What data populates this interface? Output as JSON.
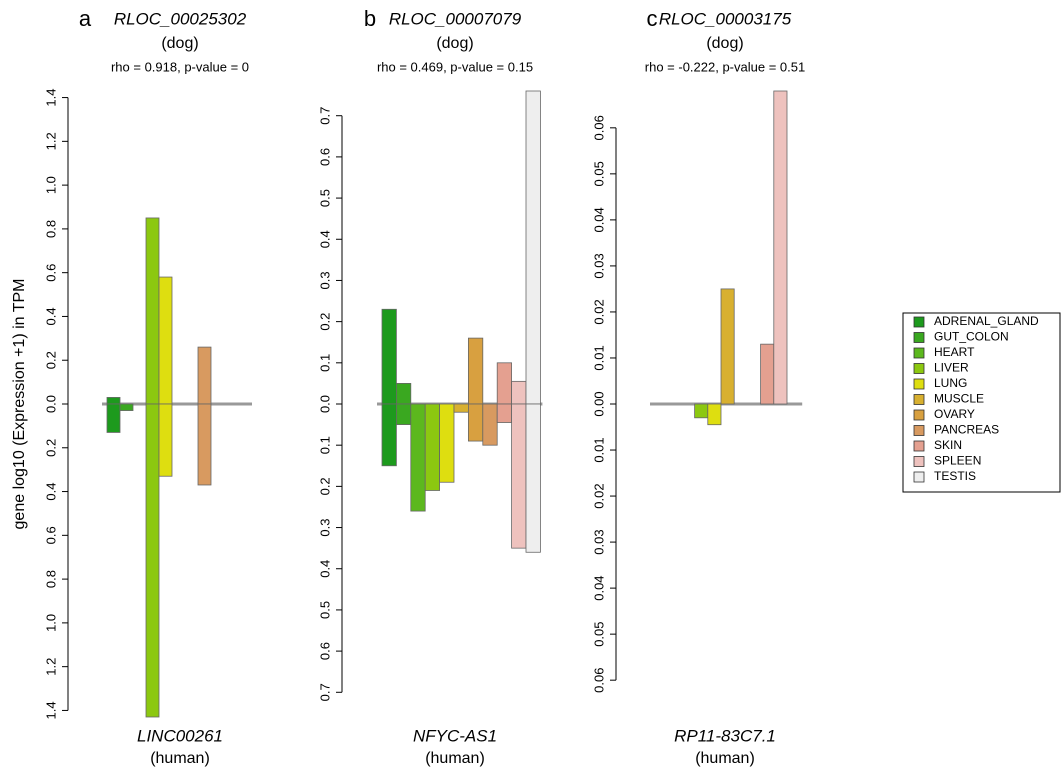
{
  "chart_data": [
    {
      "type": "bar",
      "panel": "a",
      "title": "RLOC_00025302",
      "top_label": "(dog)",
      "subtitle": "rho = 0.918, p-value = 0",
      "bottom_title": "LINC00261",
      "bottom_label": "(human)",
      "ylabel": "gene log10 (Expression +1) in TPM",
      "categories": [
        "ADRENAL_GLAND",
        "GUT_COLON",
        "HEART",
        "LIVER",
        "LUNG",
        "MUSCLE",
        "OVARY",
        "PANCREAS",
        "SKIN",
        "SPLEEN",
        "TESTIS"
      ],
      "colors": [
        "#1d9a1d",
        "#3aa820",
        "#5cb81e",
        "#8cc810",
        "#dede10",
        "#d8b030",
        "#d8a040",
        "#d89a60",
        "#e4a090",
        "#eec2be",
        "#eeeeee"
      ],
      "series": [
        {
          "values": [
            0.03,
            0,
            0,
            0.85,
            0.58,
            0,
            0,
            0.26,
            0,
            0,
            0
          ]
        },
        {
          "values": [
            -0.13,
            -0.03,
            0,
            -1.43,
            -0.33,
            0,
            0,
            -0.37,
            0,
            0,
            0
          ]
        }
      ],
      "ylim": [
        -1.43,
        1.43
      ],
      "yticks": [
        {
          "value": -1.4,
          "label": "1.4"
        },
        {
          "value": -1.2,
          "label": "1.2"
        },
        {
          "value": -1.0,
          "label": "1.0"
        },
        {
          "value": -0.8,
          "label": "0.8"
        },
        {
          "value": -0.6,
          "label": "0.6"
        },
        {
          "value": -0.4,
          "label": "0.4"
        },
        {
          "value": -0.2,
          "label": "0.2"
        },
        {
          "value": 0,
          "label": "0.0"
        },
        0.2,
        0.4,
        0.6,
        0.8,
        {
          "value": 1.0,
          "label": "1.0"
        },
        1.2,
        1.4
      ]
    },
    {
      "type": "bar",
      "panel": "b",
      "title": "RLOC_00007079",
      "top_label": "(dog)",
      "subtitle": "rho = 0.469, p-value = 0.15",
      "bottom_title": "NFYC-AS1",
      "bottom_label": "(human)",
      "categories": [
        "ADRENAL_GLAND",
        "GUT_COLON",
        "HEART",
        "LIVER",
        "LUNG",
        "MUSCLE",
        "OVARY",
        "PANCREAS",
        "SKIN",
        "SPLEEN",
        "TESTIS"
      ],
      "colors": [
        "#1d9a1d",
        "#3aa820",
        "#5cb81e",
        "#8cc810",
        "#dede10",
        "#d8b030",
        "#d8a040",
        "#d89a60",
        "#e4a090",
        "#eec2be",
        "#eeeeee"
      ],
      "series": [
        {
          "values": [
            0.23,
            0.05,
            0,
            0,
            0,
            0,
            0.16,
            0,
            0.1,
            0.055,
            0.76
          ]
        },
        {
          "values": [
            -0.15,
            -0.05,
            -0.26,
            -0.21,
            -0.19,
            -0.02,
            -0.09,
            -0.1,
            -0.045,
            -0.35,
            -0.36
          ]
        }
      ],
      "ylim": [
        -0.76,
        0.76
      ],
      "yticks": [
        {
          "value": -0.7,
          "label": "0.7"
        },
        {
          "value": -0.6,
          "label": "0.6"
        },
        {
          "value": -0.5,
          "label": "0.5"
        },
        {
          "value": -0.4,
          "label": "0.4"
        },
        {
          "value": -0.3,
          "label": "0.3"
        },
        {
          "value": -0.2,
          "label": "0.2"
        },
        {
          "value": -0.1,
          "label": "0.1"
        },
        {
          "value": 0,
          "label": "0.0"
        },
        0.1,
        0.2,
        0.3,
        0.4,
        0.5,
        0.6,
        0.7
      ]
    },
    {
      "type": "bar",
      "panel": "c",
      "title": "RLOC_00003175",
      "top_label": "(dog)",
      "subtitle": "rho = -0.222, p-value = 0.51",
      "bottom_title": "RP11-83C7.1",
      "bottom_label": "(human)",
      "categories": [
        "ADRENAL_GLAND",
        "GUT_COLON",
        "HEART",
        "LIVER",
        "LUNG",
        "MUSCLE",
        "OVARY",
        "PANCREAS",
        "SKIN",
        "SPLEEN",
        "TESTIS"
      ],
      "colors": [
        "#1d9a1d",
        "#3aa820",
        "#5cb81e",
        "#8cc810",
        "#dede10",
        "#d8b030",
        "#d8a040",
        "#d89a60",
        "#e4a090",
        "#eec2be",
        "#eeeeee"
      ],
      "series": [
        {
          "values": [
            0,
            0,
            0,
            0,
            0,
            0.025,
            0,
            0,
            0.013,
            0.068,
            0
          ]
        },
        {
          "values": [
            0,
            0,
            0,
            -0.003,
            -0.0045,
            0,
            0,
            0,
            0,
            0,
            0
          ]
        }
      ],
      "ylim": [
        -0.068,
        0.068
      ],
      "yticks": [
        {
          "value": -0.06,
          "label": "0.06"
        },
        {
          "value": -0.05,
          "label": "0.05"
        },
        {
          "value": -0.04,
          "label": "0.04"
        },
        {
          "value": -0.03,
          "label": "0.03"
        },
        {
          "value": -0.02,
          "label": "0.02"
        },
        {
          "value": -0.01,
          "label": "0.01"
        },
        {
          "value": 0,
          "label": "0.00"
        },
        0.01,
        0.02,
        0.03,
        0.04,
        0.05,
        0.06
      ]
    }
  ]
}
